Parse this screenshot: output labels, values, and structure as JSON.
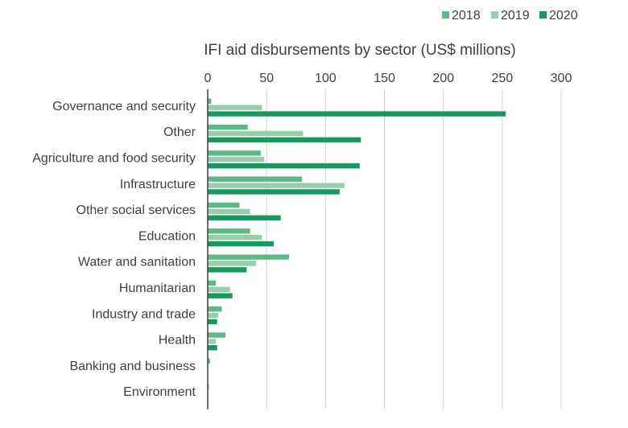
{
  "chart_data": {
    "type": "bar",
    "orientation": "horizontal",
    "title": "IFI aid disbursements by sector (US$ millions)",
    "xlabel": "",
    "ylabel": "",
    "xlim": [
      0,
      300
    ],
    "ticks": [
      0,
      50,
      100,
      150,
      200,
      250,
      300
    ],
    "grid": true,
    "legend_position": "top-right",
    "categories": [
      "Governance and security",
      "Other",
      "Agriculture and food security",
      "Infrastructure",
      "Other social services",
      "Education",
      "Water and sanitation",
      "Humanitarian",
      "Industry and trade",
      "Health",
      "Banking and business",
      "Environment"
    ],
    "series": [
      {
        "name": "2018",
        "color": "#5cba84",
        "values": [
          3,
          34,
          45,
          80,
          27,
          36,
          69,
          7,
          12,
          15,
          2,
          1
        ]
      },
      {
        "name": "2019",
        "color": "#96cfa9",
        "values": [
          46,
          81,
          48,
          116,
          36,
          46,
          41,
          19,
          9,
          7,
          0,
          0
        ]
      },
      {
        "name": "2020",
        "color": "#17985f",
        "values": [
          253,
          130,
          129,
          112,
          62,
          56,
          33,
          21,
          8,
          8,
          0,
          0
        ]
      }
    ]
  }
}
